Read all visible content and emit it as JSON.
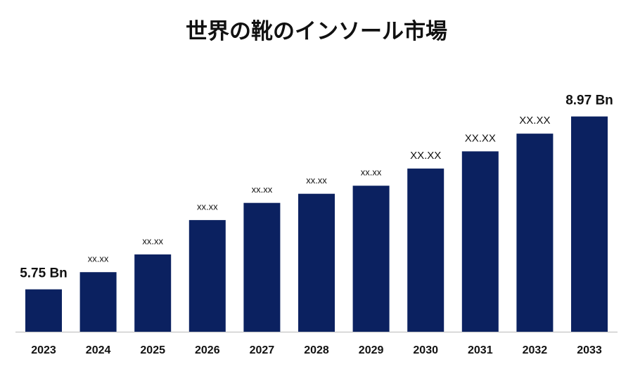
{
  "chart_data": {
    "type": "bar",
    "title": "世界の靴のインソール市場",
    "categories": [
      "2023",
      "2024",
      "2025",
      "2026",
      "2027",
      "2028",
      "2029",
      "2030",
      "2031",
      "2032",
      "2033"
    ],
    "values": [
      5.75,
      6.07,
      6.4,
      7.04,
      7.36,
      7.53,
      7.68,
      8.0,
      8.32,
      8.65,
      8.97
    ],
    "value_labels": [
      "5.75 Bn",
      "xx.xx",
      "xx.xx",
      "xx.xx",
      "xx.xx",
      "xx.xx",
      "xx.xx",
      "XX.XX",
      "XX.XX",
      "XX.XX",
      "8.97 Bn"
    ],
    "color": "#0b2160",
    "ylim": [
      4.96,
      9.83
    ]
  }
}
